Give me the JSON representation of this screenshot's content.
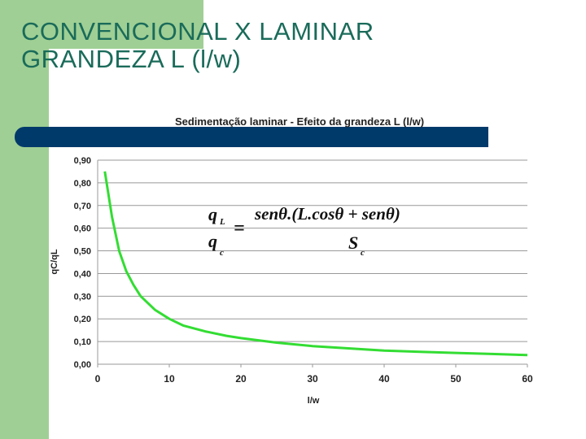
{
  "slide": {
    "title_line1": "CONVENCIONAL X LAMINAR",
    "title_line2": "GRANDEZA L (l/w)"
  },
  "formula": {
    "lhs_num": "q",
    "lhs_num_sub": "L",
    "lhs_den": "q",
    "lhs_den_sub": "c",
    "equals": "=",
    "rhs_num": "senθ.(L.cosθ + senθ)",
    "rhs_den": "S",
    "rhs_den_sub": "c"
  },
  "colors": {
    "title": "#1a6b5a",
    "side_band": "#9fcf94",
    "divider_bar": "#003a6b",
    "curve": "#33dd33",
    "gridline": "#999999"
  },
  "chart_data": {
    "type": "line",
    "title": "Sedimentação laminar - Efeito da grandeza  L (l/w)",
    "xlabel": "l/w",
    "ylabel": "qC/qL",
    "xlim": [
      0,
      60
    ],
    "ylim": [
      0,
      0.9
    ],
    "x_ticks": [
      "0",
      "10",
      "20",
      "30",
      "40",
      "50",
      "60"
    ],
    "y_ticks": [
      "0,00",
      "0,10",
      "0,20",
      "0,30",
      "0,40",
      "0,50",
      "0,60",
      "0,70",
      "0,80",
      "0,90"
    ],
    "grid": "horizontal",
    "legend": "none",
    "series": [
      {
        "x": [
          1,
          2,
          3,
          4,
          5,
          6,
          8,
          10,
          12,
          15,
          18,
          20,
          25,
          30,
          35,
          40,
          45,
          50,
          55,
          60
        ],
        "y": [
          0.85,
          0.65,
          0.5,
          0.41,
          0.35,
          0.3,
          0.24,
          0.2,
          0.17,
          0.145,
          0.125,
          0.115,
          0.095,
          0.08,
          0.07,
          0.06,
          0.055,
          0.05,
          0.045,
          0.04
        ]
      }
    ]
  }
}
